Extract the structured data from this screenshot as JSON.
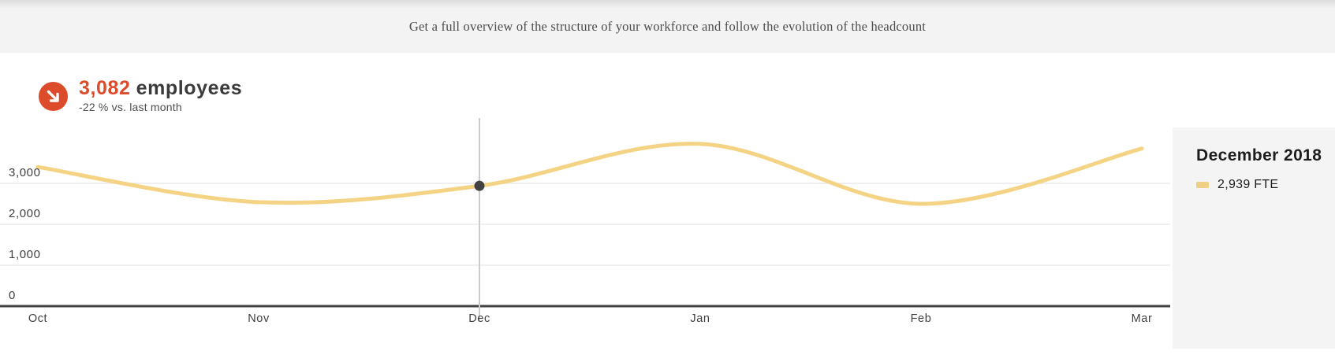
{
  "banner": {
    "text": "Get a full overview of the structure of your workforce and follow the evolution of the headcount"
  },
  "metric": {
    "value": "3,082",
    "unit": "employees",
    "delta": "-22 % vs. last month",
    "trend_icon": "arrow-down-right-icon",
    "accent_color": "#dc4c2a"
  },
  "tooltip": {
    "title": "December 2018",
    "legend_value": "2,939 FTE",
    "swatch_color": "#eecf83"
  },
  "chart_data": {
    "type": "line",
    "title": "",
    "xlabel": "",
    "ylabel": "",
    "x": [
      "Oct",
      "Nov",
      "Dec",
      "Jan",
      "Feb",
      "Mar"
    ],
    "series": [
      {
        "name": "FTE",
        "values": [
          3400,
          2540,
          2939,
          3965,
          2500,
          3850
        ]
      }
    ],
    "yticks": [
      0,
      1000,
      2000,
      3000
    ],
    "ytick_labels": [
      "0",
      "1,000",
      "2,000",
      "3,000"
    ],
    "ylim": [
      0,
      4650
    ],
    "grid": true,
    "legend_position": "right-tooltip",
    "line_color": "#f4d385",
    "grid_color": "#eaeaea",
    "axis_color": "#424242",
    "crosshair_color": "#cccccc",
    "marker_color": "#424242",
    "highlight": {
      "x": "Dec",
      "value": 2939
    }
  }
}
